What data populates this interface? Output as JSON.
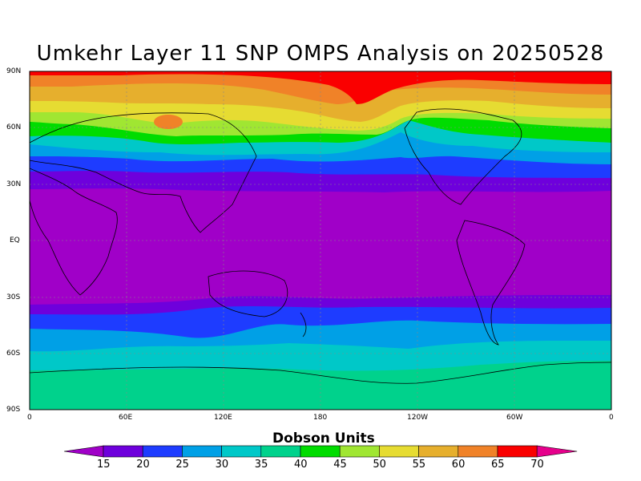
{
  "title": "Umkehr Layer 11 SNP OMPS Analysis on 20250528",
  "lat_labels": [
    "90N",
    "60N",
    "30N",
    "EQ",
    "30S",
    "60S",
    "90S"
  ],
  "lon_labels": [
    "0",
    "60E",
    "120E",
    "180",
    "120W",
    "60W",
    "0"
  ],
  "colorbar": {
    "title": "Dobson Units",
    "ticks": [
      "15",
      "20",
      "25",
      "30",
      "35",
      "40",
      "45",
      "50",
      "55",
      "60",
      "65",
      "70"
    ],
    "colors": [
      "#a000c8",
      "#6e00dc",
      "#1e3cff",
      "#00a0e6",
      "#00c8c8",
      "#00d28c",
      "#00dc00",
      "#a0e632",
      "#e6dc32",
      "#e6af2d",
      "#f08228",
      "#fa0000",
      "#e6008c"
    ]
  }
}
